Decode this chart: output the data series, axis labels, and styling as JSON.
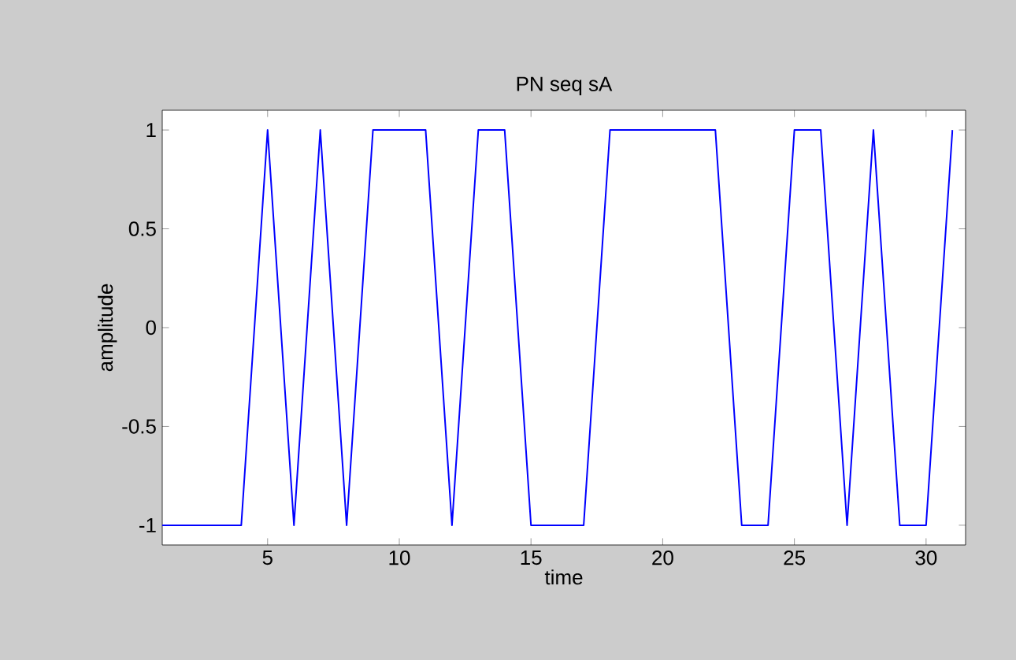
{
  "chart_data": {
    "type": "line",
    "title": "PN seq sA",
    "xlabel": "time",
    "ylabel": "amplitude",
    "x": [
      1,
      2,
      3,
      4,
      5,
      6,
      7,
      8,
      9,
      10,
      11,
      12,
      13,
      14,
      15,
      16,
      17,
      18,
      19,
      20,
      21,
      22,
      23,
      24,
      25,
      26,
      27,
      28,
      29,
      30,
      31
    ],
    "series": [
      {
        "color": "#0000ff",
        "values": [
          -1,
          -1,
          -1,
          -1,
          1,
          -1,
          1,
          -1,
          1,
          1,
          1,
          -1,
          1,
          1,
          -1,
          -1,
          -1,
          1,
          1,
          1,
          1,
          1,
          -1,
          -1,
          1,
          1,
          -1,
          1,
          -1,
          -1,
          1
        ]
      }
    ],
    "xlim": [
      1,
      31.5
    ],
    "ylim": [
      -1.1,
      1.1
    ],
    "xticks": [
      5,
      10,
      15,
      20,
      25,
      30
    ],
    "yticks": [
      -1,
      -0.5,
      0,
      0.5,
      1
    ],
    "grid": false,
    "marker": "none",
    "line_style": "solid"
  }
}
